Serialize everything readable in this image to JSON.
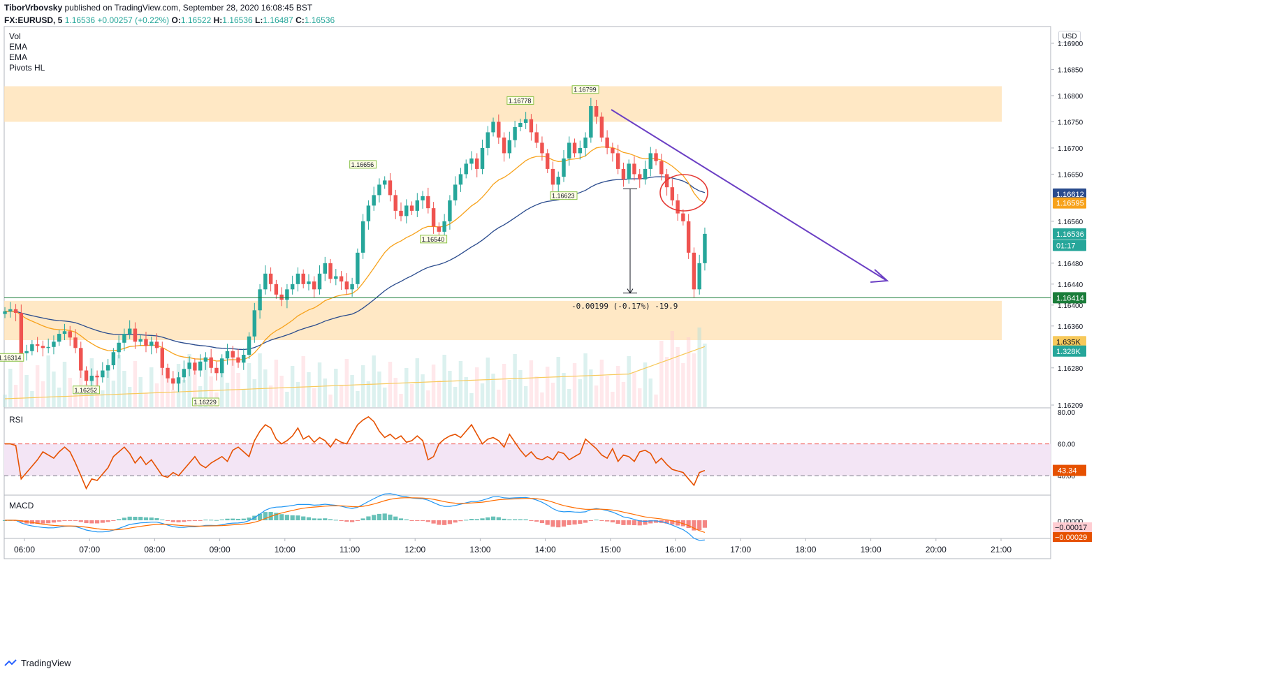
{
  "header": {
    "author": "TiborVrbovsky",
    "published_text": "published on TradingView.com, September 28, 2020 16:08:45 BST",
    "symbol": "FX:EURUSD, 5",
    "last": "1.16536",
    "change": "+0.00257 (+0.22%)",
    "o_label": "O:",
    "o": "1.16522",
    "h_label": "H:",
    "h": "1.16536",
    "l_label": "L:",
    "l": "1.16487",
    "c_label": "C:",
    "c": "1.16536"
  },
  "indicators": [
    "Vol",
    "EMA",
    "EMA",
    "Pivots HL"
  ],
  "currency_badge": "USD",
  "footer_brand": "TradingView",
  "colors": {
    "up": "#26a69a",
    "down": "#ef5350",
    "zone": "#ffe0b2",
    "ema_fast": "#f7a21b",
    "ema_slow": "#2a4b8d",
    "arrow": "#6b3fc4",
    "rsi_line": "#e65100",
    "rsi_band": "#f3e5f5"
  },
  "chart_data": [
    {
      "type": "candlestick",
      "title": "FX:EURUSD, 5",
      "x_ticks": [
        "06:00",
        "07:00",
        "08:00",
        "09:00",
        "10:00",
        "11:00",
        "12:00",
        "13:00",
        "14:00",
        "15:00",
        "16:00",
        "17:00",
        "18:00",
        "19:00",
        "20:00",
        "21:00"
      ],
      "y_ticks": [
        1.16209,
        1.1628,
        1.1636,
        1.164,
        1.1644,
        1.1648,
        1.1656,
        1.1665,
        1.167,
        1.1675,
        1.168,
        1.1685,
        1.169
      ],
      "y_tick_labels": [
        "1.16209",
        "1.16280",
        "1.16360",
        "1.16400",
        "1.16440",
        "1.16480",
        "1.16560",
        "1.16650",
        "1.16700",
        "1.16750",
        "1.16800",
        "1.16850",
        "1.16900"
      ],
      "ylim": [
        1.16205,
        1.16932
      ],
      "x_start_hour": 5.7,
      "bar_minutes": 5,
      "closes": [
        1.16388,
        1.16392,
        1.16385,
        1.16308,
        1.16312,
        1.16325,
        1.16322,
        1.16318,
        1.1632,
        1.1633,
        1.16345,
        1.1635,
        1.16338,
        1.16318,
        1.16275,
        1.16255,
        1.16265,
        1.16262,
        1.16275,
        1.16285,
        1.1631,
        1.16328,
        1.16345,
        1.16355,
        1.1633,
        1.16335,
        1.16322,
        1.1633,
        1.16318,
        1.1628,
        1.1626,
        1.1625,
        1.16262,
        1.16278,
        1.1629,
        1.16275,
        1.16292,
        1.163,
        1.1628,
        1.1627,
        1.16298,
        1.16312,
        1.163,
        1.1629,
        1.16305,
        1.1634,
        1.1639,
        1.1643,
        1.1646,
        1.1644,
        1.1642,
        1.1641,
        1.1643,
        1.1644,
        1.1646,
        1.1644,
        1.16445,
        1.1643,
        1.1646,
        1.1648,
        1.1645,
        1.16455,
        1.16445,
        1.1643,
        1.1644,
        1.165,
        1.1656,
        1.1659,
        1.1661,
        1.1663,
        1.16638,
        1.1661,
        1.1658,
        1.1657,
        1.1659,
        1.1658,
        1.166,
        1.16608,
        1.16585,
        1.1655,
        1.1654,
        1.1656,
        1.166,
        1.1663,
        1.1665,
        1.1667,
        1.1668,
        1.1666,
        1.167,
        1.1673,
        1.1675,
        1.1672,
        1.1669,
        1.16715,
        1.1674,
        1.16748,
        1.16755,
        1.1673,
        1.1671,
        1.1669,
        1.1666,
        1.1663,
        1.16645,
        1.1668,
        1.1671,
        1.1669,
        1.167,
        1.1672,
        1.1678,
        1.1676,
        1.1672,
        1.167,
        1.1669,
        1.1666,
        1.1664,
        1.1667,
        1.1665,
        1.1664,
        1.1666,
        1.1669,
        1.16675,
        1.1665,
        1.16625,
        1.166,
        1.16575,
        1.1656,
        1.165,
        1.1643,
        1.1648,
        1.16536
      ],
      "pivots": [
        {
          "index": 1,
          "value": "1.16314",
          "pos": "below"
        },
        {
          "index": 15,
          "value": "1.16252",
          "pos": "below"
        },
        {
          "index": 37,
          "value": "1.16229",
          "pos": "below"
        },
        {
          "index": 66,
          "value": "1.16656",
          "pos": "above"
        },
        {
          "index": 79,
          "value": "1.16540",
          "pos": "below"
        },
        {
          "index": 95,
          "value": "1.16778",
          "pos": "above"
        },
        {
          "index": 103,
          "value": "1.16623",
          "pos": "below"
        },
        {
          "index": 107,
          "value": "1.16799",
          "pos": "above"
        }
      ],
      "zones": [
        [
          1.1675,
          1.16818
        ],
        [
          1.16333,
          1.16408
        ]
      ],
      "support_line": 1.16414,
      "price_labels": [
        {
          "label": "1.16612",
          "value": 1.16612,
          "color": "#2a4b8d"
        },
        {
          "label": "1.16595",
          "value": 1.16595,
          "color": "#f7a21b"
        },
        {
          "label": "1.16536",
          "value": 1.16536,
          "color": "#26a69a"
        },
        {
          "label": "01:17",
          "value": 1.16514,
          "color": "#26a69a"
        },
        {
          "label": "1.16414",
          "value": 1.16414,
          "color": "#1b7d3a"
        },
        {
          "label": "1.635K",
          "value": 1.1633,
          "color": "#f7c95b"
        },
        {
          "label": "1.328K",
          "value": 1.16312,
          "color": "#26a69a"
        }
      ],
      "measure_label": "-0.00199 (-0.17%) -19.9",
      "measure_from": 1.16622,
      "measure_to": 1.16423
    },
    {
      "type": "line",
      "title": "RSI",
      "ylim": [
        30,
        80
      ],
      "y_tick_labels": [
        "80.00",
        "60.00",
        "40.00"
      ],
      "y_ticks": [
        80,
        60,
        40
      ],
      "band": [
        40,
        60
      ],
      "last_label": "43.34",
      "values": [
        60,
        60,
        59,
        38,
        42,
        46,
        50,
        55,
        53,
        51,
        55,
        58,
        55,
        48,
        40,
        32,
        38,
        37,
        41,
        45,
        52,
        55,
        58,
        54,
        48,
        52,
        47,
        50,
        45,
        40,
        39,
        42,
        40,
        44,
        48,
        52,
        47,
        45,
        48,
        50,
        52,
        49,
        56,
        58,
        55,
        52,
        62,
        68,
        72,
        70,
        63,
        60,
        62,
        65,
        70,
        63,
        65,
        61,
        64,
        62,
        58,
        63,
        61,
        60,
        66,
        72,
        75,
        77,
        74,
        68,
        64,
        66,
        63,
        65,
        61,
        62,
        65,
        62,
        50,
        52,
        60,
        63,
        65,
        66,
        64,
        68,
        72,
        66,
        60,
        63,
        64,
        62,
        58,
        66,
        61,
        56,
        52,
        55,
        51,
        50,
        52,
        50,
        55,
        54,
        50,
        52,
        54,
        63,
        60,
        57,
        53,
        51,
        57,
        49,
        53,
        52,
        49,
        55,
        56,
        54,
        48,
        51,
        47,
        44,
        43,
        42,
        38,
        34,
        42,
        43.34
      ]
    },
    {
      "type": "macd",
      "title": "MACD",
      "y_tick_labels": [
        "0.00000"
      ],
      "labels": [
        {
          "label": "−0.00017",
          "color": "#ffcdd2",
          "text": "#131722"
        },
        {
          "label": "−0.00029",
          "color": "#e65100",
          "text": "#ffffff"
        }
      ]
    }
  ]
}
